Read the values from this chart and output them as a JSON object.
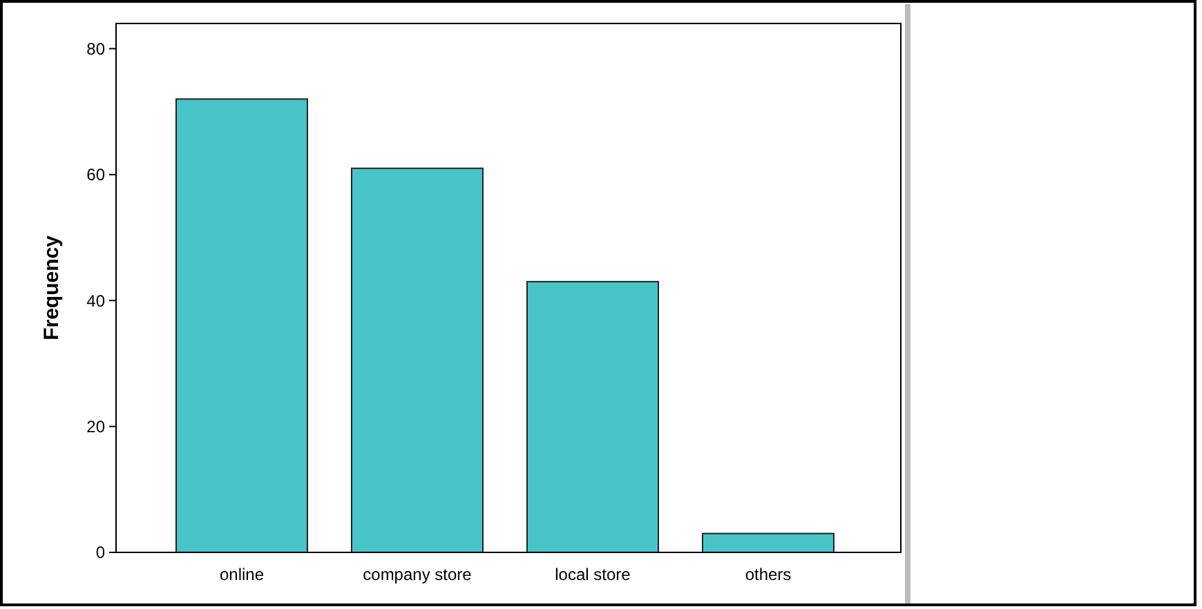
{
  "chart_data": {
    "type": "bar",
    "ylabel": "Frequency",
    "categories": [
      "online",
      "company store",
      "local store",
      "others"
    ],
    "values": [
      72,
      61,
      43,
      3
    ],
    "color": "#48c4c8",
    "ylim": [
      0,
      84
    ],
    "yticks": [
      0,
      20,
      40,
      60,
      80
    ],
    "grid": false
  }
}
